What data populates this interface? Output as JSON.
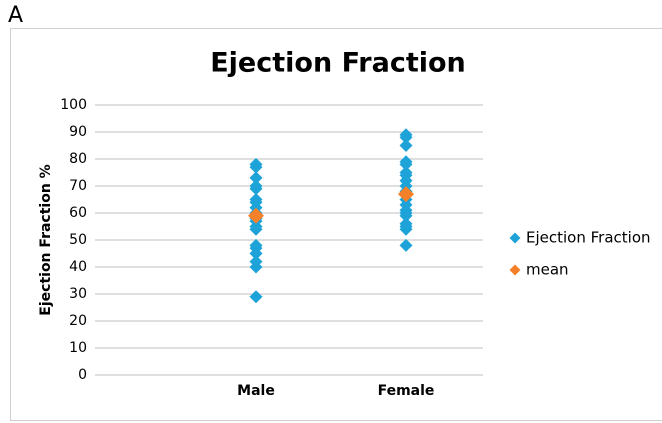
{
  "panel_label": "A",
  "chart_data": {
    "type": "strip",
    "title": "Ejection Fraction",
    "y_label": "Ejection Fraction %",
    "categories": [
      "Male",
      "Female"
    ],
    "ylim": [
      0,
      100
    ],
    "yticks": [
      0,
      10,
      20,
      30,
      40,
      50,
      60,
      70,
      80,
      90,
      100
    ],
    "grid": true,
    "legend": "right",
    "series": [
      {
        "name": "Ejection Fraction",
        "color": "#1ea3d9",
        "values": [
          [
            78,
            77,
            73,
            70,
            69,
            65,
            64,
            62,
            60,
            58,
            57,
            55,
            54,
            48,
            47,
            45,
            42,
            40,
            29
          ],
          [
            89,
            88,
            85,
            79,
            78,
            75,
            74,
            72,
            70,
            68,
            67,
            65,
            63,
            61,
            60,
            59,
            56,
            55,
            54,
            48
          ]
        ]
      },
      {
        "name": "mean",
        "color": "#f4802a",
        "values": [
          59,
          67
        ]
      }
    ]
  }
}
